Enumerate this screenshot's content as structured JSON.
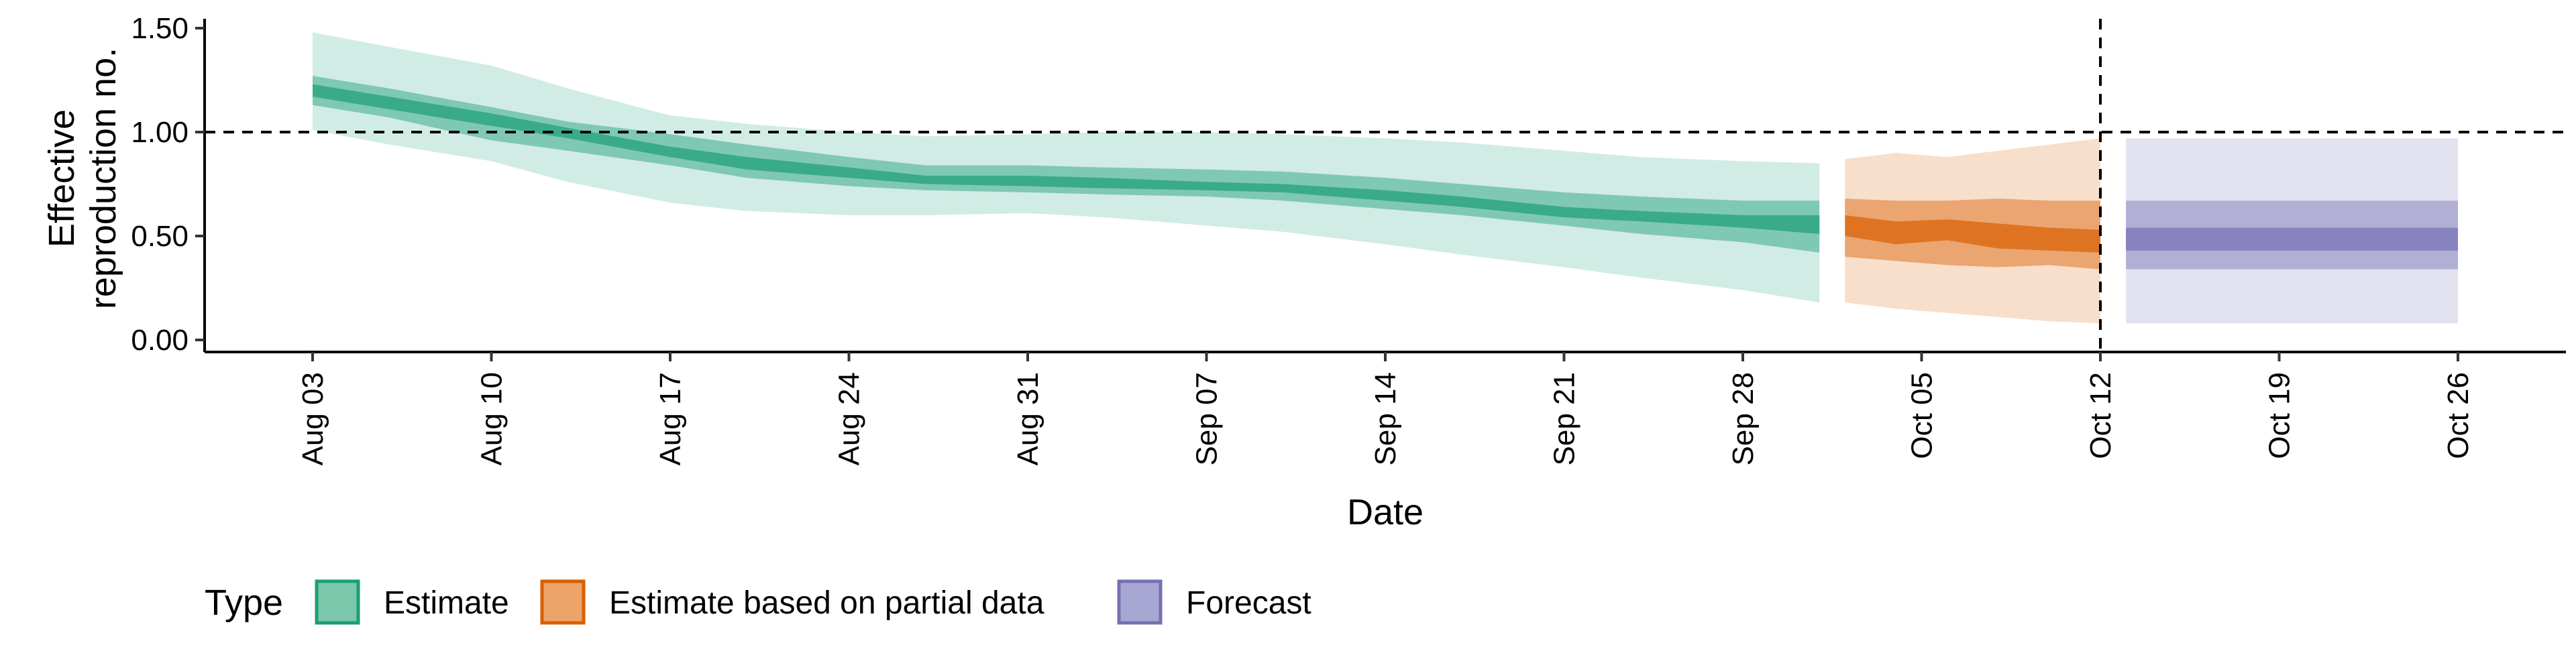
{
  "chart_data": {
    "type": "area",
    "xlabel": "Date",
    "ylabel": [
      "Effective",
      "reproduction no."
    ],
    "x_domain": [
      "2020-08-03",
      "2020-10-26"
    ],
    "ylim": [
      0,
      1.55
    ],
    "y_ticks": [
      0.0,
      0.5,
      1.0,
      1.5
    ],
    "y_tick_labels": [
      "0.00",
      "0.50",
      "1.00",
      "1.50"
    ],
    "x_ticks": [
      "2020-08-03",
      "2020-08-10",
      "2020-08-17",
      "2020-08-24",
      "2020-08-31",
      "2020-09-07",
      "2020-09-14",
      "2020-09-21",
      "2020-09-28",
      "2020-10-05",
      "2020-10-12",
      "2020-10-19",
      "2020-10-26"
    ],
    "x_tick_labels": [
      "Aug 03",
      "Aug 10",
      "Aug 17",
      "Aug 24",
      "Aug 31",
      "Sep 07",
      "Sep 14",
      "Sep 21",
      "Sep 28",
      "Oct 05",
      "Oct 12",
      "Oct 19",
      "Oct 26"
    ],
    "reference_lines": {
      "horizontal_y": 1.0,
      "vertical_x": "2020-10-12",
      "style": "dashed"
    },
    "grid": false,
    "legend": {
      "title": "Type",
      "position": "bottom",
      "items": [
        {
          "label": "Estimate",
          "fill": "#7cc8ac",
          "stroke": "#1b9e77"
        },
        {
          "label": "Estimate based on partial data",
          "fill": "#eca46a",
          "stroke": "#d95f02"
        },
        {
          "label": "Forecast",
          "fill": "#a8a7d3",
          "stroke": "#7570b3"
        }
      ]
    },
    "series": [
      {
        "name": "Estimate",
        "color": "#1b9e77",
        "bands": [
          {
            "interval": "outer",
            "opacity": 0.2
          },
          {
            "interval": "middle",
            "opacity": 0.45
          },
          {
            "interval": "inner",
            "opacity": 0.7
          }
        ],
        "points": [
          {
            "x": "2020-08-03",
            "lo90": 1.01,
            "lo50": 1.13,
            "lo20": 1.17,
            "hi20": 1.23,
            "hi50": 1.27,
            "hi90": 1.48
          },
          {
            "x": "2020-08-06",
            "lo90": 0.94,
            "lo50": 1.07,
            "lo20": 1.11,
            "hi20": 1.17,
            "hi50": 1.21,
            "hi90": 1.41
          },
          {
            "x": "2020-08-10",
            "lo90": 0.86,
            "lo50": 0.96,
            "lo20": 1.03,
            "hi20": 1.09,
            "hi50": 1.12,
            "hi90": 1.32
          },
          {
            "x": "2020-08-13",
            "lo90": 0.76,
            "lo50": 0.91,
            "lo20": 0.97,
            "hi20": 1.02,
            "hi50": 1.05,
            "hi90": 1.21
          },
          {
            "x": "2020-08-17",
            "lo90": 0.66,
            "lo50": 0.84,
            "lo20": 0.88,
            "hi20": 0.93,
            "hi50": 0.99,
            "hi90": 1.08
          },
          {
            "x": "2020-08-20",
            "lo90": 0.62,
            "lo50": 0.78,
            "lo20": 0.82,
            "hi20": 0.88,
            "hi50": 0.94,
            "hi90": 1.04
          },
          {
            "x": "2020-08-24",
            "lo90": 0.6,
            "lo50": 0.74,
            "lo20": 0.78,
            "hi20": 0.83,
            "hi50": 0.88,
            "hi90": 1.0
          },
          {
            "x": "2020-08-27",
            "lo90": 0.6,
            "lo50": 0.72,
            "lo20": 0.75,
            "hi20": 0.79,
            "hi50": 0.84,
            "hi90": 0.98
          },
          {
            "x": "2020-08-31",
            "lo90": 0.61,
            "lo50": 0.71,
            "lo20": 0.74,
            "hi20": 0.79,
            "hi50": 0.84,
            "hi90": 0.99
          },
          {
            "x": "2020-09-03",
            "lo90": 0.59,
            "lo50": 0.7,
            "lo20": 0.73,
            "hi20": 0.78,
            "hi50": 0.83,
            "hi90": 1.0
          },
          {
            "x": "2020-09-07",
            "lo90": 0.55,
            "lo50": 0.69,
            "lo20": 0.72,
            "hi20": 0.76,
            "hi50": 0.82,
            "hi90": 1.0
          },
          {
            "x": "2020-09-10",
            "lo90": 0.52,
            "lo50": 0.67,
            "lo20": 0.71,
            "hi20": 0.75,
            "hi50": 0.81,
            "hi90": 0.99
          },
          {
            "x": "2020-09-14",
            "lo90": 0.46,
            "lo50": 0.63,
            "lo20": 0.67,
            "hi20": 0.72,
            "hi50": 0.78,
            "hi90": 0.97
          },
          {
            "x": "2020-09-17",
            "lo90": 0.41,
            "lo50": 0.6,
            "lo20": 0.64,
            "hi20": 0.69,
            "hi50": 0.75,
            "hi90": 0.95
          },
          {
            "x": "2020-09-21",
            "lo90": 0.35,
            "lo50": 0.55,
            "lo20": 0.59,
            "hi20": 0.64,
            "hi50": 0.71,
            "hi90": 0.91
          },
          {
            "x": "2020-09-24",
            "lo90": 0.3,
            "lo50": 0.51,
            "lo20": 0.57,
            "hi20": 0.62,
            "hi50": 0.69,
            "hi90": 0.88
          },
          {
            "x": "2020-09-28",
            "lo90": 0.24,
            "lo50": 0.47,
            "lo20": 0.54,
            "hi20": 0.6,
            "hi50": 0.67,
            "hi90": 0.86
          },
          {
            "x": "2020-10-01",
            "lo90": 0.18,
            "lo50": 0.42,
            "lo20": 0.51,
            "hi20": 0.6,
            "hi50": 0.67,
            "hi90": 0.85
          }
        ]
      },
      {
        "name": "Estimate based on partial data",
        "color": "#d95f02",
        "bands": [
          {
            "interval": "outer",
            "opacity": 0.2
          },
          {
            "interval": "middle",
            "opacity": 0.45
          },
          {
            "interval": "inner",
            "opacity": 0.7
          }
        ],
        "points": [
          {
            "x": "2020-10-02",
            "lo90": 0.18,
            "lo50": 0.4,
            "lo20": 0.5,
            "hi20": 0.6,
            "hi50": 0.68,
            "hi90": 0.87
          },
          {
            "x": "2020-10-04",
            "lo90": 0.15,
            "lo50": 0.38,
            "lo20": 0.46,
            "hi20": 0.57,
            "hi50": 0.67,
            "hi90": 0.9
          },
          {
            "x": "2020-10-06",
            "lo90": 0.13,
            "lo50": 0.36,
            "lo20": 0.48,
            "hi20": 0.58,
            "hi50": 0.67,
            "hi90": 0.88
          },
          {
            "x": "2020-10-08",
            "lo90": 0.11,
            "lo50": 0.35,
            "lo20": 0.44,
            "hi20": 0.56,
            "hi50": 0.68,
            "hi90": 0.91
          },
          {
            "x": "2020-10-10",
            "lo90": 0.09,
            "lo50": 0.36,
            "lo20": 0.43,
            "hi20": 0.54,
            "hi50": 0.67,
            "hi90": 0.94
          },
          {
            "x": "2020-10-12",
            "lo90": 0.08,
            "lo50": 0.34,
            "lo20": 0.42,
            "hi20": 0.53,
            "hi50": 0.67,
            "hi90": 0.97
          }
        ]
      },
      {
        "name": "Forecast",
        "color": "#7570b3",
        "bands": [
          {
            "interval": "outer",
            "opacity": 0.2
          },
          {
            "interval": "middle",
            "opacity": 0.45
          },
          {
            "interval": "inner",
            "opacity": 0.7
          }
        ],
        "points": [
          {
            "x": "2020-10-13",
            "lo90": 0.08,
            "lo50": 0.34,
            "lo20": 0.43,
            "hi20": 0.54,
            "hi50": 0.67,
            "hi90": 0.97
          },
          {
            "x": "2020-10-26",
            "lo90": 0.08,
            "lo50": 0.34,
            "lo20": 0.43,
            "hi20": 0.54,
            "hi50": 0.67,
            "hi90": 0.97
          }
        ]
      }
    ]
  }
}
